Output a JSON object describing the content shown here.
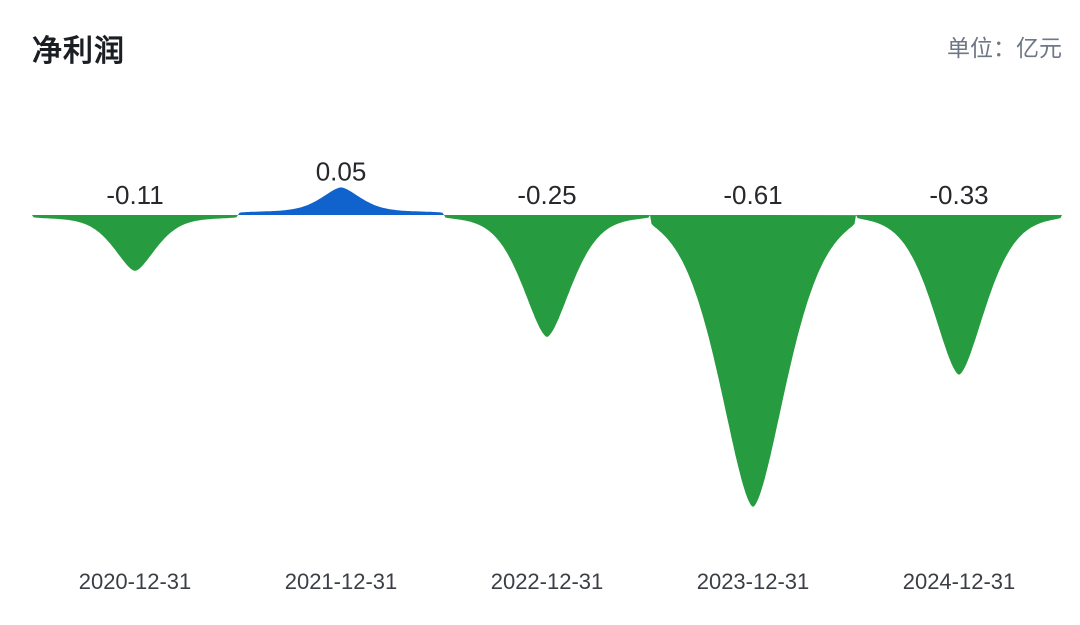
{
  "header": {
    "title": "净利润",
    "unit_label": "单位：亿元"
  },
  "colors": {
    "positive": "#1062cc",
    "negative": "#269b40",
    "title": "#1b1f24",
    "unit": "#6e7786",
    "value_label": "#26282c",
    "date_label": "#3b3f45",
    "background": "#ffffff"
  },
  "chart_data": {
    "type": "area",
    "variant": "spike-stream",
    "title": "净利润",
    "unit": "亿元",
    "x": [
      "2020-12-31",
      "2021-12-31",
      "2022-12-31",
      "2023-12-31",
      "2024-12-31"
    ],
    "values": [
      -0.11,
      0.05,
      -0.25,
      -0.61,
      -0.33
    ],
    "value_labels": [
      "-0.11",
      "0.05",
      "-0.25",
      "-0.61",
      "-0.33"
    ],
    "baseline": 0,
    "ylim": [
      -0.65,
      0.1
    ],
    "grid": false,
    "legend": "none",
    "positive_color": "#1062cc",
    "negative_color": "#269b40"
  }
}
